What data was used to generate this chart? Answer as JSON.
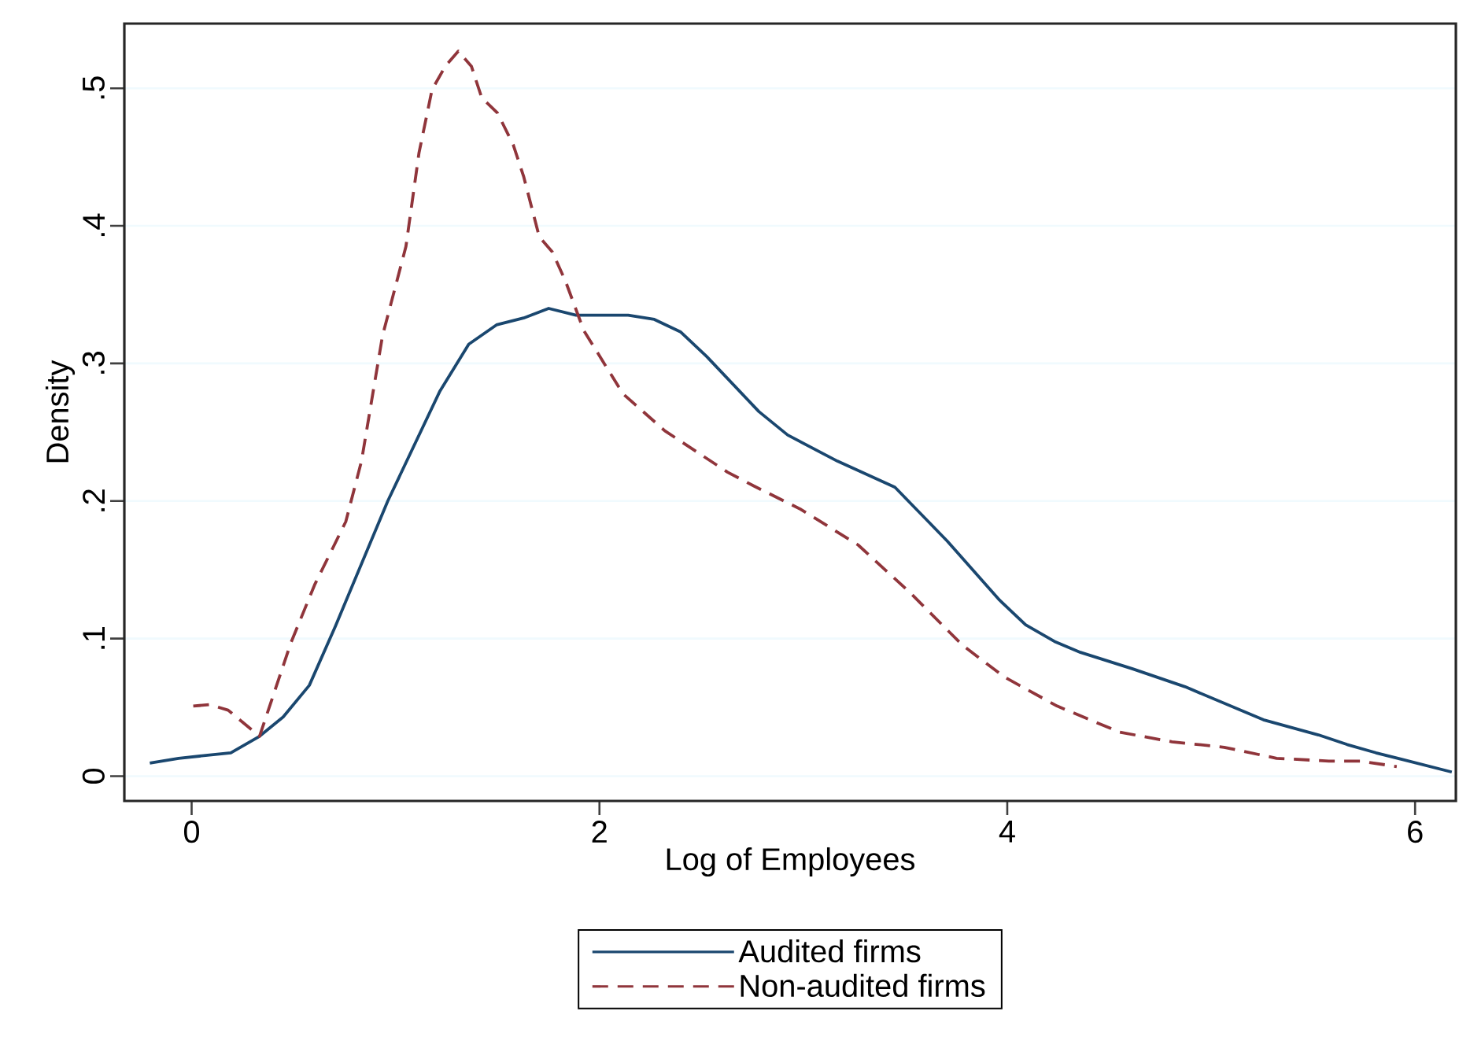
{
  "chart_data": {
    "type": "line",
    "xlabel": "Log of Employees",
    "ylabel": "Density",
    "xlim": [
      -0.33,
      6.2
    ],
    "ylim": [
      -0.018,
      0.547
    ],
    "xticks": [
      0,
      2,
      4,
      6
    ],
    "yticks": [
      0,
      {
        "value": 0.1,
        "label": ".1"
      },
      {
        "value": 0.2,
        "label": ".2"
      },
      {
        "value": 0.3,
        "label": ".3"
      },
      {
        "value": 0.4,
        "label": ".4"
      },
      {
        "value": 0.5,
        "label": ".5"
      }
    ],
    "grid": "y",
    "legend": "bottom",
    "series": [
      {
        "name": "Audited firms",
        "color": "#1a476f",
        "line_style": "solid",
        "x": [
          -0.205,
          -0.064,
          0.192,
          0.333,
          0.449,
          0.577,
          0.705,
          0.962,
          1.218,
          1.359,
          1.495,
          1.628,
          1.751,
          1.885,
          2.141,
          2.269,
          2.397,
          2.526,
          2.782,
          2.923,
          3.167,
          3.449,
          3.705,
          3.962,
          4.09,
          4.231,
          4.359,
          4.615,
          4.872,
          5.256,
          5.526,
          5.667,
          5.808,
          6.18
        ],
        "values": [
          0.0095,
          0.013,
          0.017,
          0.029,
          0.043,
          0.066,
          0.109,
          0.2,
          0.28,
          0.314,
          0.328,
          0.333,
          0.34,
          0.335,
          0.335,
          0.332,
          0.323,
          0.305,
          0.265,
          0.248,
          0.229,
          0.21,
          0.171,
          0.128,
          0.11,
          0.098,
          0.09,
          0.078,
          0.065,
          0.041,
          0.03,
          0.023,
          0.017,
          0.003
        ]
      },
      {
        "name": "Non-audited firms",
        "color": "#90353b",
        "line_style": "dashed",
        "x": [
          0.008,
          0.09,
          0.179,
          0.333,
          0.487,
          0.603,
          0.756,
          0.833,
          0.936,
          1.051,
          1.115,
          1.179,
          1.244,
          1.308,
          1.372,
          1.423,
          1.5,
          1.577,
          1.628,
          1.705,
          1.769,
          1.833,
          1.923,
          2.115,
          2.321,
          2.628,
          2.756,
          2.987,
          3.269,
          3.526,
          3.782,
          3.987,
          4.244,
          4.551,
          4.808,
          5.064,
          5.321,
          5.577,
          5.731,
          5.91
        ],
        "values": [
          0.051,
          0.052,
          0.048,
          0.029,
          0.097,
          0.139,
          0.185,
          0.229,
          0.32,
          0.385,
          0.453,
          0.499,
          0.516,
          0.527,
          0.516,
          0.493,
          0.482,
          0.459,
          0.436,
          0.392,
          0.381,
          0.36,
          0.324,
          0.278,
          0.251,
          0.221,
          0.211,
          0.194,
          0.168,
          0.133,
          0.095,
          0.072,
          0.051,
          0.032,
          0.025,
          0.021,
          0.013,
          0.011,
          0.011,
          0.007
        ]
      }
    ]
  }
}
